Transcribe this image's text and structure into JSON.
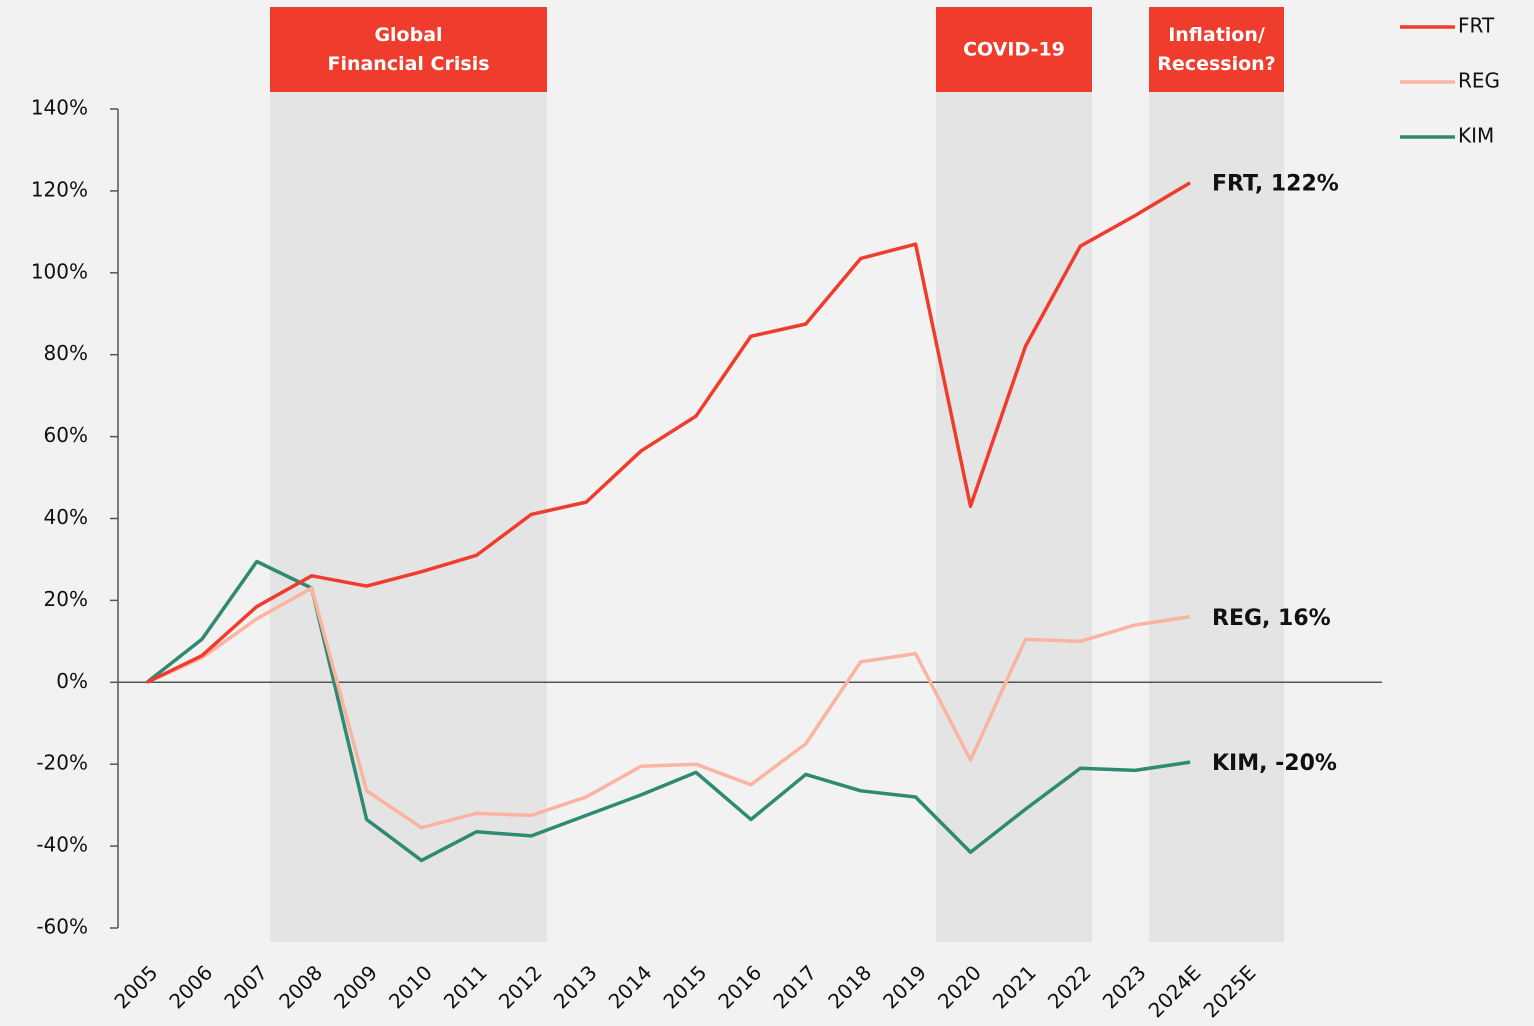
{
  "chart_data": {
    "type": "line",
    "categories": [
      "2005",
      "2006",
      "2007",
      "2008",
      "2009",
      "2010",
      "2011",
      "2012",
      "2013",
      "2014",
      "2015",
      "2016",
      "2017",
      "2018",
      "2019",
      "2020",
      "2021",
      "2022",
      "2023",
      "2024E",
      "2025E"
    ],
    "series": [
      {
        "name": "FRT",
        "color": "#f03c2c",
        "values": [
          0,
          6.5,
          18.5,
          26,
          23.5,
          27,
          31,
          41,
          44,
          56.5,
          65,
          84.5,
          87.5,
          103.5,
          107,
          43,
          82,
          106.5,
          114,
          122,
          null
        ]
      },
      {
        "name": "REG",
        "color": "#fbb4a0",
        "values": [
          0,
          6,
          15.5,
          23,
          -26.5,
          -35.5,
          -32,
          -32.5,
          -28,
          -20.5,
          -20,
          -25,
          -15,
          5,
          7,
          -19,
          10.5,
          10,
          14,
          16,
          null
        ]
      },
      {
        "name": "KIM",
        "color": "#2e8a72",
        "values": [
          0,
          10.5,
          29.5,
          23,
          -33.5,
          -43.5,
          -36.5,
          -37.5,
          -32.5,
          -27.5,
          -22,
          -33.5,
          -22.5,
          -26.5,
          -28,
          -41.5,
          -31,
          -21,
          -21.5,
          -19.5,
          null
        ]
      }
    ],
    "end_labels": [
      "FRT, 122%",
      "REG, 16%",
      "KIM, -20%"
    ],
    "period_labels": [
      [
        "Global",
        "Financial Crisis"
      ],
      [
        "COVID-19"
      ],
      [
        "Inflation/",
        "Recession?"
      ]
    ],
    "ylim": [
      -60,
      140
    ],
    "yticks": [
      {
        "value": -60,
        "label": "-60%"
      },
      {
        "value": -40,
        "label": "-40%"
      },
      {
        "value": -20,
        "label": "-20%"
      },
      {
        "value": 0,
        "label": "0%"
      },
      {
        "value": 20,
        "label": "20%"
      },
      {
        "value": 40,
        "label": "40%"
      },
      {
        "value": 60,
        "label": "60%"
      },
      {
        "value": 80,
        "label": "80%"
      },
      {
        "value": 100,
        "label": "100%"
      },
      {
        "value": 120,
        "label": "120%"
      },
      {
        "value": 140,
        "label": "140%"
      }
    ],
    "legend": "top-right"
  }
}
